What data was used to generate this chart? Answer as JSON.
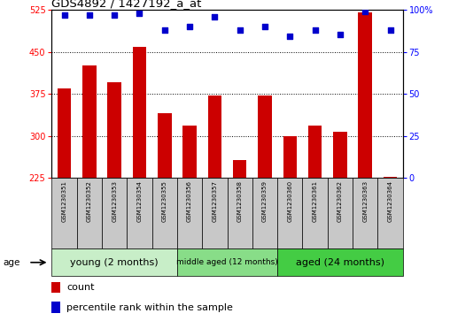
{
  "title": "GDS4892 / 1427192_a_at",
  "samples": [
    "GSM1230351",
    "GSM1230352",
    "GSM1230353",
    "GSM1230354",
    "GSM1230355",
    "GSM1230356",
    "GSM1230357",
    "GSM1230358",
    "GSM1230359",
    "GSM1230360",
    "GSM1230361",
    "GSM1230362",
    "GSM1230363",
    "GSM1230364"
  ],
  "counts": [
    385,
    425,
    395,
    458,
    340,
    318,
    372,
    258,
    372,
    300,
    318,
    308,
    520,
    228
  ],
  "percentile_ranks": [
    97,
    97,
    97,
    98,
    88,
    90,
    96,
    88,
    90,
    84,
    88,
    85,
    99,
    88
  ],
  "ylim_left": [
    225,
    525
  ],
  "ylim_right": [
    0,
    100
  ],
  "yticks_left": [
    225,
    300,
    375,
    450,
    525
  ],
  "yticks_right": [
    0,
    25,
    50,
    75,
    100
  ],
  "groups": [
    {
      "label": "young (2 months)",
      "start": 0,
      "end": 5,
      "color": "#C8EEC8"
    },
    {
      "label": "middle aged (12 months)",
      "start": 5,
      "end": 9,
      "color": "#88DD88"
    },
    {
      "label": "aged (24 months)",
      "start": 9,
      "end": 14,
      "color": "#44CC44"
    }
  ],
  "bar_color": "#CC0000",
  "dot_color": "#0000CC",
  "sample_bg": "#CCCCCC",
  "legend_count": "count",
  "legend_percentile": "percentile rank within the sample",
  "age_label": "age"
}
